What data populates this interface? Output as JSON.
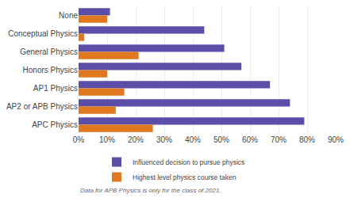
{
  "chart_data": {
    "type": "bar",
    "orientation": "horizontal",
    "categories": [
      "None",
      "Conceptual Physics",
      "General Physics",
      "Honors Physics",
      "AP1 Physics",
      "AP2 or APB Physics",
      "APC Physics"
    ],
    "series": [
      {
        "name": "Influenced decision to pursue physics",
        "color": "#5b4ea8",
        "values": [
          0.11,
          0.44,
          0.51,
          0.57,
          0.67,
          0.74,
          0.79
        ]
      },
      {
        "name": "Highest level physics course taken",
        "color": "#e07820",
        "values": [
          0.1,
          0.02,
          0.21,
          0.1,
          0.16,
          0.13,
          0.26
        ]
      }
    ],
    "xlim": [
      0,
      0.9
    ],
    "xticks": [
      {
        "value": 0.0,
        "label": "0%"
      },
      {
        "value": 0.1,
        "label": "10%"
      },
      {
        "value": 0.2,
        "label": "20%"
      },
      {
        "value": 0.3,
        "label": "30%"
      },
      {
        "value": 0.4,
        "label": "40%"
      },
      {
        "value": 0.5,
        "label": "50%"
      },
      {
        "value": 0.6,
        "label": "60%"
      },
      {
        "value": 0.7,
        "label": "70%"
      },
      {
        "value": 0.8,
        "label": "80%"
      },
      {
        "value": 0.9,
        "label": "90%"
      }
    ],
    "grid": true,
    "legend": "bottom",
    "annotations": [
      "Data for APB Physics is only for the class of 2021."
    ]
  }
}
